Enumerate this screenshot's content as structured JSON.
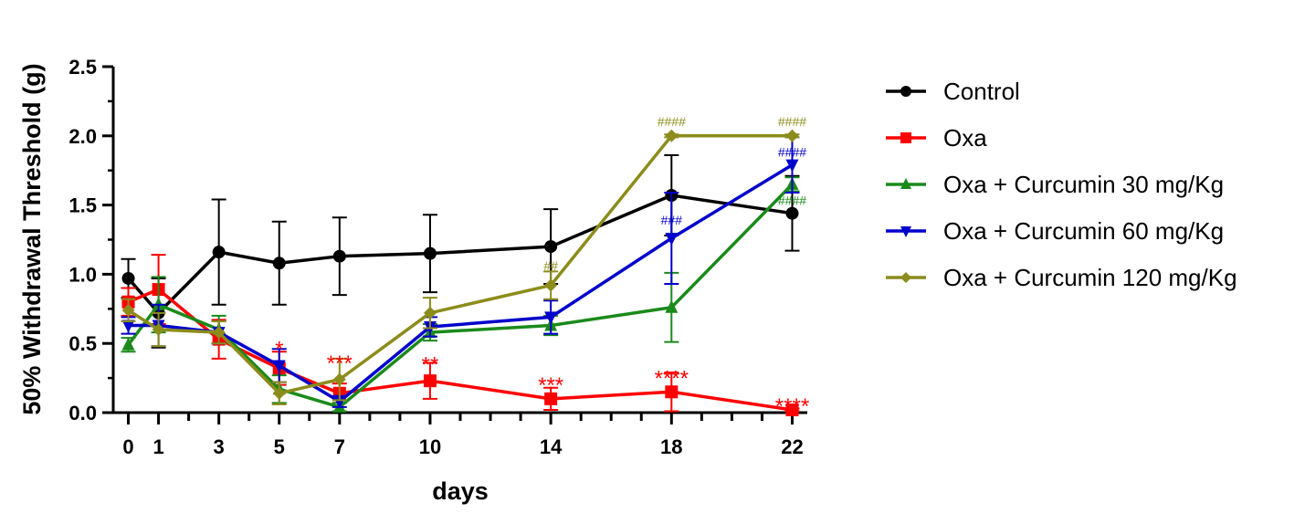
{
  "chart_data": {
    "type": "line",
    "xlabel": "days",
    "ylabel": "50% Withdrawal Threshold (g)",
    "xlim": [
      -0.5,
      22.5
    ],
    "ylim": [
      0,
      2.5
    ],
    "x_ticks": [
      0,
      1,
      3,
      5,
      7,
      10,
      14,
      18,
      22
    ],
    "y_ticks": [
      "0.0",
      "0.5",
      "1.0",
      "1.5",
      "2.0",
      "2.5"
    ],
    "legend_position": "right",
    "series": [
      {
        "name": "Control",
        "color": "#000000",
        "marker": "circle",
        "x": [
          0,
          1,
          3,
          5,
          7,
          10,
          14,
          18,
          22
        ],
        "y": [
          0.97,
          0.72,
          1.16,
          1.08,
          1.13,
          1.15,
          1.2,
          1.57,
          1.44
        ],
        "err": [
          0.14,
          0.25,
          0.38,
          0.3,
          0.28,
          0.28,
          0.27,
          0.29,
          0.27
        ]
      },
      {
        "name": "Oxa",
        "color": "#ff0000",
        "marker": "square",
        "x": [
          0,
          1,
          3,
          5,
          7,
          10,
          14,
          18,
          22
        ],
        "y": [
          0.8,
          0.89,
          0.53,
          0.32,
          0.14,
          0.23,
          0.1,
          0.15,
          0.02
        ],
        "err": [
          0.1,
          0.25,
          0.14,
          0.12,
          0.07,
          0.13,
          0.08,
          0.14,
          0.01
        ]
      },
      {
        "name": "Oxa + Curcumin 30 mg/Kg",
        "color": "#1a8a1a",
        "marker": "triangle-up",
        "x": [
          0,
          1,
          3,
          5,
          7,
          10,
          14,
          18,
          22
        ],
        "y": [
          0.49,
          0.78,
          0.6,
          0.17,
          0.04,
          0.58,
          0.63,
          0.76,
          1.65
        ],
        "err": [
          0.05,
          0.2,
          0.1,
          0.1,
          0.03,
          0.06,
          0.07,
          0.25,
          0.05
        ]
      },
      {
        "name": "Oxa + Curcumin 60 mg/Kg",
        "color": "#0000cc",
        "marker": "triangle-down",
        "x": [
          0,
          1,
          3,
          5,
          7,
          10,
          14,
          18,
          22
        ],
        "y": [
          0.63,
          0.63,
          0.58,
          0.34,
          0.08,
          0.62,
          0.69,
          1.26,
          1.79
        ],
        "err": [
          0.06,
          0.15,
          0.08,
          0.12,
          0.04,
          0.07,
          0.12,
          0.33,
          0.2
        ]
      },
      {
        "name": "Oxa + Curcumin 120 mg/Kg",
        "color": "#8c8c1c",
        "marker": "diamond",
        "x": [
          0,
          1,
          3,
          5,
          7,
          10,
          14,
          18,
          22
        ],
        "y": [
          0.74,
          0.6,
          0.58,
          0.14,
          0.24,
          0.72,
          0.92,
          2.0,
          2.0
        ],
        "err": [
          0.08,
          0.12,
          0.08,
          0.08,
          0.15,
          0.11,
          0.1,
          0.01,
          0.01
        ]
      }
    ],
    "annotations": [
      {
        "text": "*",
        "x": 5,
        "y": 0.47,
        "color": "#ff0000"
      },
      {
        "text": "***",
        "x": 7,
        "y": 0.37,
        "color": "#ff0000"
      },
      {
        "text": "**",
        "x": 10,
        "y": 0.36,
        "color": "#ff0000"
      },
      {
        "text": "***",
        "x": 14,
        "y": 0.21,
        "color": "#ff0000"
      },
      {
        "text": "****",
        "x": 18,
        "y": 0.26,
        "color": "#ff0000"
      },
      {
        "text": "****",
        "x": 22,
        "y": 0.06,
        "color": "#ff0000"
      },
      {
        "text": "##",
        "x": 14,
        "y": 1.03,
        "color": "#8c8c1c"
      },
      {
        "text": "###",
        "x": 18,
        "y": 1.36,
        "color": "#0000cc"
      },
      {
        "text": "####",
        "x": 18,
        "y": 2.07,
        "color": "#8c8c1c"
      },
      {
        "text": "####",
        "x": 22,
        "y": 2.07,
        "color": "#8c8c1c"
      },
      {
        "text": "####",
        "x": 22,
        "y": 1.85,
        "color": "#0000cc"
      },
      {
        "text": "####",
        "x": 22,
        "y": 1.5,
        "color": "#1a8a1a"
      }
    ]
  }
}
